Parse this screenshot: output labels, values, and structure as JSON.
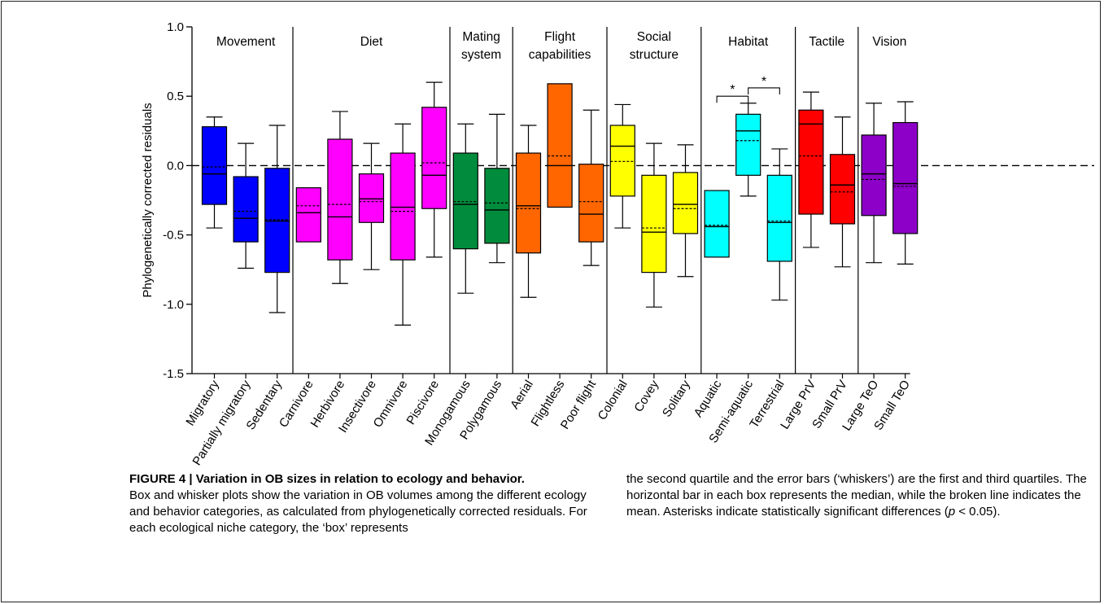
{
  "chart_data": {
    "type": "box",
    "ylabel": "Phylogenetically corrected residuals",
    "ylim": [
      -1.5,
      1.0
    ],
    "yticks": [
      1.0,
      0.5,
      0.0,
      -0.5,
      -1.0,
      -1.5
    ],
    "ytick_labels": [
      "1.0",
      "0.5",
      "0.0",
      "-0.5",
      "-1.0",
      "-1.5"
    ],
    "reference_line": 0.0,
    "groups": [
      {
        "label": [
          "Movement"
        ],
        "n": 3
      },
      {
        "label": [
          "Diet"
        ],
        "n": 5
      },
      {
        "label": [
          "Mating",
          "system"
        ],
        "n": 2
      },
      {
        "label": [
          "Flight",
          "capabilities"
        ],
        "n": 3
      },
      {
        "label": [
          "Social",
          "structure"
        ],
        "n": 3
      },
      {
        "label": [
          "Habitat"
        ],
        "n": 3
      },
      {
        "label": [
          "Tactile"
        ],
        "n": 2
      },
      {
        "label": [
          "Vision"
        ],
        "n": 2
      }
    ],
    "boxes": [
      {
        "label": "Migratory",
        "color": "#0000ff",
        "whisker_low": -0.45,
        "q1": -0.28,
        "median": -0.06,
        "mean": -0.01,
        "q3": 0.28,
        "whisker_high": 0.35
      },
      {
        "label": "Partially migratory",
        "color": "#0000ff",
        "whisker_low": -0.74,
        "q1": -0.55,
        "median": -0.38,
        "mean": -0.33,
        "q3": -0.08,
        "whisker_high": 0.16
      },
      {
        "label": "Sedentary",
        "color": "#0000ff",
        "whisker_low": -1.06,
        "q1": -0.77,
        "median": -0.4,
        "mean": -0.39,
        "q3": -0.02,
        "whisker_high": 0.29
      },
      {
        "label": "Carnivore",
        "color": "#ff00ff",
        "whisker_low": null,
        "q1": -0.55,
        "median": -0.34,
        "mean": -0.29,
        "q3": -0.16,
        "whisker_high": null
      },
      {
        "label": "Herbivore",
        "color": "#ff00ff",
        "whisker_low": -0.85,
        "q1": -0.68,
        "median": -0.37,
        "mean": -0.28,
        "q3": 0.19,
        "whisker_high": 0.39
      },
      {
        "label": "Insectivore",
        "color": "#ff00ff",
        "whisker_low": -0.75,
        "q1": -0.41,
        "median": -0.24,
        "mean": -0.26,
        "q3": -0.06,
        "whisker_high": 0.16
      },
      {
        "label": "Omnivore",
        "color": "#ff00ff",
        "whisker_low": -1.15,
        "q1": -0.68,
        "median": -0.3,
        "mean": -0.33,
        "q3": 0.09,
        "whisker_high": 0.3
      },
      {
        "label": "Piscivore",
        "color": "#ff00ff",
        "whisker_low": -0.66,
        "q1": -0.31,
        "median": -0.07,
        "mean": 0.02,
        "q3": 0.42,
        "whisker_high": 0.6
      },
      {
        "label": "Monogamous",
        "color": "#008c3c",
        "whisker_low": -0.92,
        "q1": -0.6,
        "median": -0.28,
        "mean": -0.26,
        "q3": 0.09,
        "whisker_high": 0.3
      },
      {
        "label": "Polygamous",
        "color": "#008c3c",
        "whisker_low": -0.7,
        "q1": -0.56,
        "median": -0.32,
        "mean": -0.27,
        "q3": -0.02,
        "whisker_high": 0.37
      },
      {
        "label": "Aerial",
        "color": "#ff6600",
        "whisker_low": -0.95,
        "q1": -0.63,
        "median": -0.29,
        "mean": -0.31,
        "q3": 0.09,
        "whisker_high": 0.29
      },
      {
        "label": "Flightless",
        "color": "#ff6600",
        "whisker_low": null,
        "q1": -0.3,
        "median": 0.0,
        "mean": 0.07,
        "q3": 0.59,
        "whisker_high": null
      },
      {
        "label": "Poor flight",
        "color": "#ff6600",
        "whisker_low": -0.72,
        "q1": -0.55,
        "median": -0.35,
        "mean": -0.26,
        "q3": 0.01,
        "whisker_high": 0.4
      },
      {
        "label": "Colonial",
        "color": "#ffff00",
        "whisker_low": -0.45,
        "q1": -0.22,
        "median": 0.14,
        "mean": 0.03,
        "q3": 0.29,
        "whisker_high": 0.44
      },
      {
        "label": "Covey",
        "color": "#ffff00",
        "whisker_low": -1.02,
        "q1": -0.77,
        "median": -0.48,
        "mean": -0.45,
        "q3": -0.07,
        "whisker_high": 0.16
      },
      {
        "label": "Solitary",
        "color": "#ffff00",
        "whisker_low": -0.8,
        "q1": -0.49,
        "median": -0.28,
        "mean": -0.31,
        "q3": -0.05,
        "whisker_high": 0.15
      },
      {
        "label": "Aquatic",
        "color": "#00ffff",
        "whisker_low": null,
        "q1": -0.66,
        "median": -0.44,
        "mean": -0.43,
        "q3": -0.18,
        "whisker_high": null
      },
      {
        "label": "Semi-aquatic",
        "color": "#00ffff",
        "whisker_low": -0.22,
        "q1": -0.07,
        "median": 0.25,
        "mean": 0.18,
        "q3": 0.37,
        "whisker_high": 0.45
      },
      {
        "label": "Terrestrial",
        "color": "#00ffff",
        "whisker_low": -0.97,
        "q1": -0.69,
        "median": -0.41,
        "mean": -0.4,
        "q3": -0.07,
        "whisker_high": 0.12
      },
      {
        "label": "Large PrV",
        "color": "#ff0000",
        "whisker_low": -0.59,
        "q1": -0.35,
        "median": 0.3,
        "mean": 0.07,
        "q3": 0.4,
        "whisker_high": 0.53
      },
      {
        "label": "Small PrV",
        "color": "#ff0000",
        "whisker_low": -0.73,
        "q1": -0.42,
        "median": -0.14,
        "mean": -0.19,
        "q3": 0.08,
        "whisker_high": 0.35
      },
      {
        "label": "Large TeO",
        "color": "#8c00c8",
        "whisker_low": -0.7,
        "q1": -0.36,
        "median": -0.06,
        "mean": -0.1,
        "q3": 0.22,
        "whisker_high": 0.45
      },
      {
        "label": "Small TeO",
        "color": "#8c00c8",
        "whisker_low": -0.71,
        "q1": -0.49,
        "median": -0.13,
        "mean": -0.15,
        "q3": 0.31,
        "whisker_high": 0.46
      }
    ],
    "significance": [
      {
        "from": "Aquatic",
        "to": "Semi-aquatic",
        "label": "*",
        "y": 0.5
      },
      {
        "from": "Semi-aquatic",
        "to": "Terrestrial",
        "label": "*",
        "y": 0.56
      }
    ]
  },
  "caption": {
    "title": "FIGURE 4 | Variation in OB sizes in relation to ecology and behavior.",
    "text_left": "Box and whisker plots show the variation in OB volumes among the different ecology and behavior categories, as calculated from phylogenetically corrected residuals. For each ecological niche category, the ‘box’ represents",
    "text_right_1": "the second quartile and the error bars (‘whiskers’) are the first and third quartiles. The horizontal bar in each box represents the median, while the broken line indicates the mean. Asterisks indicate statistically significant differences (",
    "text_right_p": "p",
    "text_right_2": " < 0.05)."
  }
}
